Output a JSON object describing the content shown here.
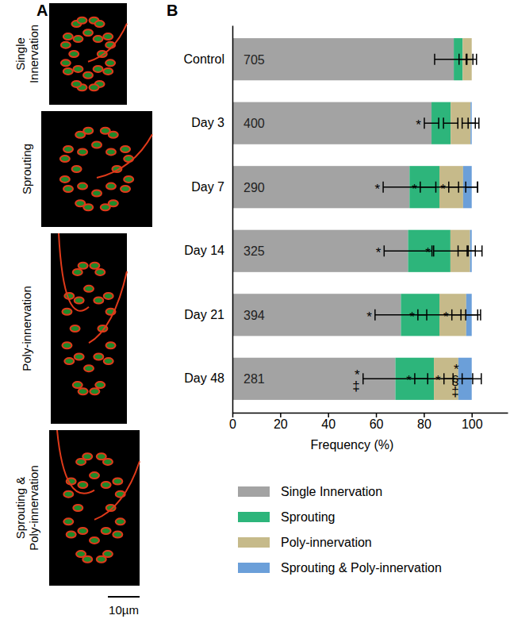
{
  "panel_a": {
    "panel_label": "A",
    "images": [
      {
        "label_lines": [
          "Single",
          "Innervation"
        ]
      },
      {
        "label_lines": [
          "Sprouting"
        ]
      },
      {
        "label_lines": [
          "Poly-innervation"
        ]
      },
      {
        "label_lines": [
          "Sprouting &",
          "Poly-innervation"
        ]
      }
    ],
    "scale_bar": "10µm"
  },
  "chart_data": {
    "type": "bar",
    "panel_label": "B",
    "orientation": "horizontal",
    "stacked": true,
    "x_label": "Frequency (%)",
    "categories": [
      "Control",
      "Day 3",
      "Day 7",
      "Day 14",
      "Day 21",
      "Day 48"
    ],
    "n": [
      705,
      400,
      290,
      325,
      394,
      281
    ],
    "xlim": [
      0,
      115
    ],
    "xticks": [
      0,
      20,
      40,
      60,
      80,
      100
    ],
    "legend": "bottom",
    "series": [
      {
        "name": "Single Innervation",
        "color": "#a3a3a3",
        "values": [
          92.5,
          83.2,
          74.0,
          73.4,
          70.4,
          68.1
        ],
        "errors": [
          8.0,
          3.0,
          11.0,
          10.0,
          10.8,
          13.5
        ],
        "significance": [
          null,
          [
            "*"
          ],
          [
            "*"
          ],
          [
            "*"
          ],
          [
            "*"
          ],
          [
            "*",
            "‡"
          ]
        ]
      },
      {
        "name": "Sprouting",
        "color": "#2db57b",
        "values": [
          3.7,
          8.0,
          12.5,
          17.7,
          16.1,
          16.1
        ],
        "errors": [
          1.5,
          3.0,
          8.0,
          7.0,
          9.0,
          8.0
        ],
        "significance": [
          null,
          null,
          [
            "*"
          ],
          [
            "*"
          ],
          [
            "*"
          ],
          [
            "*"
          ]
        ]
      },
      {
        "name": "Poly-innervation",
        "color": "#c6ba8a",
        "values": [
          3.8,
          8.3,
          9.9,
          8.2,
          11.2,
          10.2
        ],
        "errors": [
          2.0,
          3.5,
          6.0,
          5.0,
          6.0,
          6.0
        ],
        "significance": [
          null,
          null,
          [
            "*"
          ],
          null,
          [
            "*"
          ],
          [
            "*"
          ]
        ]
      },
      {
        "name": "Sprouting & Poly-innervation",
        "color": "#6b9fd9",
        "values": [
          0,
          0.5,
          3.6,
          0.7,
          2.3,
          5.6
        ],
        "errors": [
          null,
          1.5,
          2.5,
          1.5,
          2.5,
          4.0
        ],
        "significance": [
          null,
          null,
          null,
          null,
          null,
          [
            "*",
            "§",
            "‡"
          ]
        ]
      }
    ]
  }
}
